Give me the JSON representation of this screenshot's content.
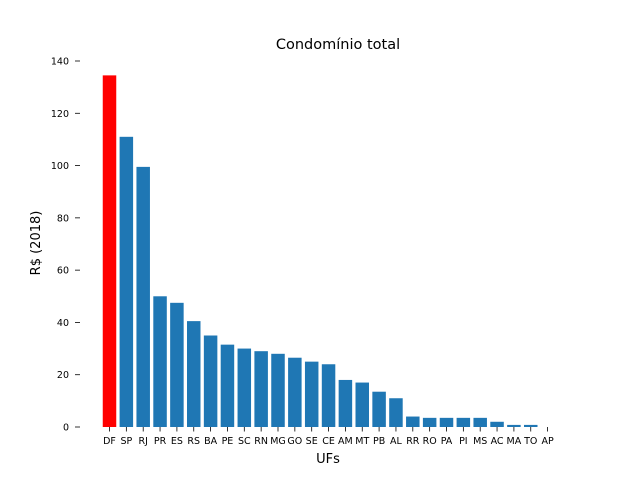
{
  "chart_data": {
    "type": "bar",
    "title": "Condomínio total",
    "xlabel": "UFs",
    "ylabel": "R$ (2018)",
    "ylim": [
      0,
      140
    ],
    "yticks": [
      0,
      20,
      40,
      60,
      80,
      100,
      120,
      140
    ],
    "grid": false,
    "categories": [
      "DF",
      "SP",
      "RJ",
      "PR",
      "ES",
      "RS",
      "BA",
      "PE",
      "SC",
      "RN",
      "MG",
      "GO",
      "SE",
      "CE",
      "AM",
      "MT",
      "PB",
      "AL",
      "RR",
      "RO",
      "PA",
      "PI",
      "MS",
      "AC",
      "MA",
      "TO",
      "AP"
    ],
    "values": [
      134.5,
      111,
      99.5,
      50,
      47.5,
      40.5,
      35,
      31.5,
      30,
      29,
      28,
      26.5,
      25,
      24,
      18,
      17,
      13.5,
      11,
      4,
      3.5,
      3.5,
      3.5,
      3.5,
      2,
      0.8,
      0.8,
      0
    ],
    "highlight_index": 0,
    "colors": {
      "default": "#1f77b4",
      "highlight": "#ff0000"
    }
  }
}
